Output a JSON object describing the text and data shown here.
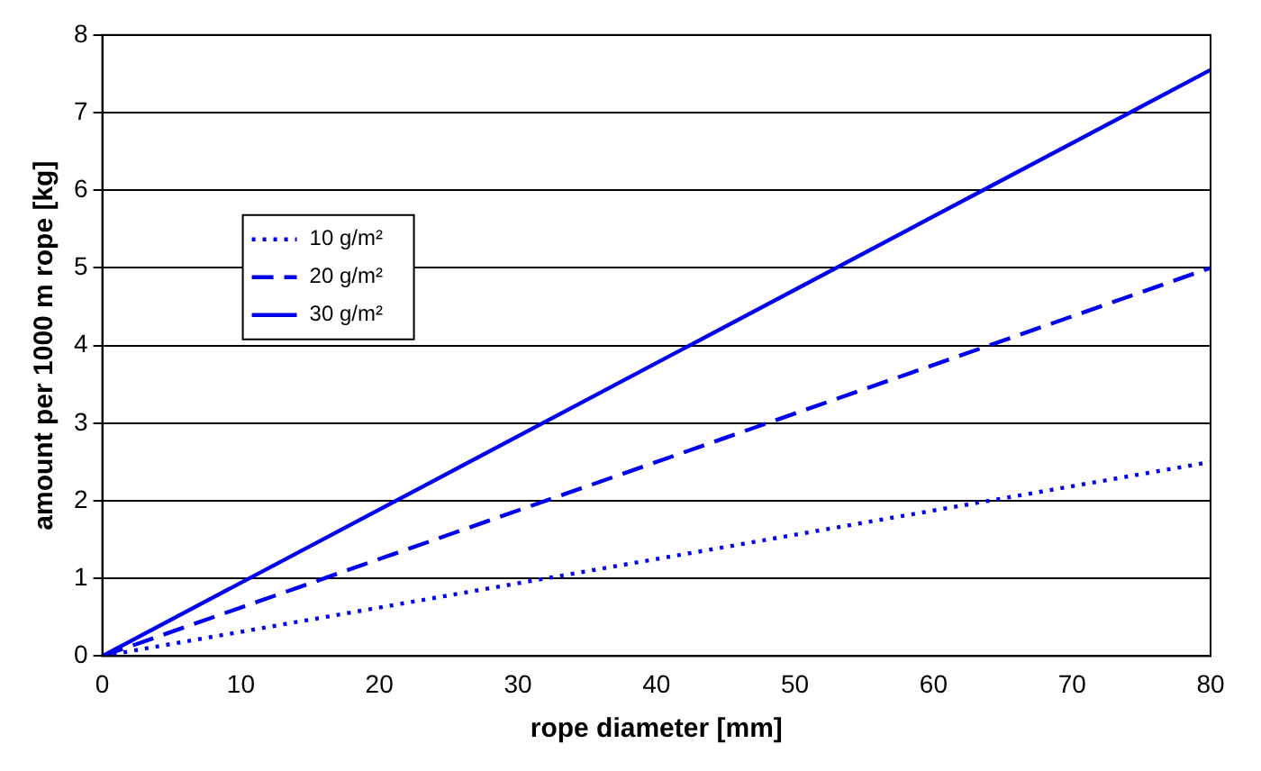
{
  "chart_data": {
    "type": "line",
    "xlabel": "rope diameter [mm]",
    "ylabel": "amount per 1000 m rope [kg]",
    "x": [
      0,
      80
    ],
    "series": [
      {
        "name": "10 g/m²",
        "color": "#0000ee",
        "values": [
          0,
          2.5
        ],
        "line_style": "dotted"
      },
      {
        "name": "20 g/m²",
        "color": "#0000ee",
        "values": [
          0,
          5.0
        ],
        "line_style": "dashed"
      },
      {
        "name": "30 g/m²",
        "color": "#0000ee",
        "values": [
          0,
          7.55
        ],
        "line_style": "solid"
      }
    ],
    "xlim": [
      0,
      80
    ],
    "xticks": [
      0,
      10,
      20,
      30,
      40,
      50,
      60,
      70,
      80
    ],
    "ylim": [
      0,
      8
    ],
    "yticks": [
      0,
      1,
      2,
      3,
      4,
      5,
      6,
      7,
      8
    ],
    "grid": "y",
    "legend": "top left",
    "marker": "none"
  }
}
